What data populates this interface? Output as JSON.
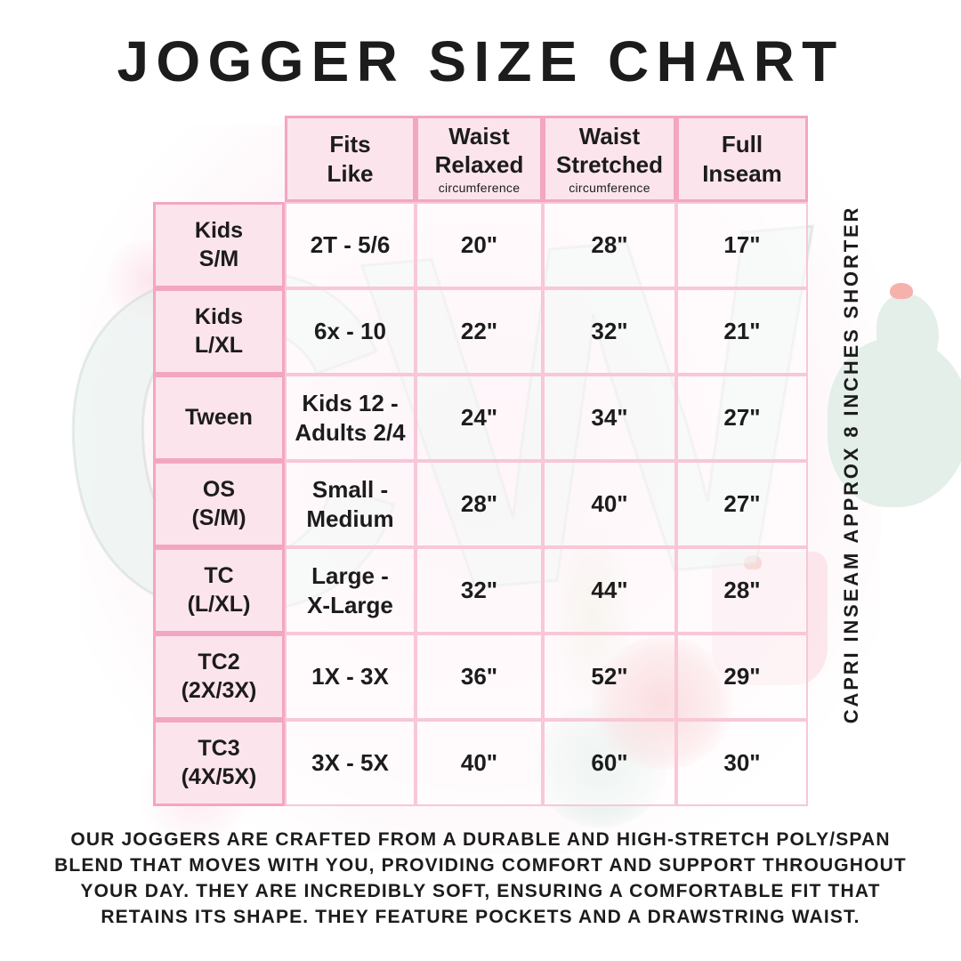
{
  "title": "JOGGER SIZE CHART",
  "watermark_text": "CW",
  "side_note": "CAPRI INSEAM APPROX 8 INCHES SHORTER",
  "footer_text": "OUR JOGGERS ARE CRAFTED FROM A DURABLE AND HIGH-STRETCH POLY/SPAN BLEND THAT MOVES WITH YOU, PROVIDING COMFORT AND SUPPORT THROUGHOUT YOUR DAY. THEY ARE INCREDIBLY SOFT, ENSURING A COMFORTABLE FIT THAT RETAINS ITS SHAPE. THEY FEATURE POCKETS AND A DRAWSTRING WAIST.",
  "colors": {
    "accent_border_strong": "#f3a6c1",
    "accent_border_light": "#f9c7d7",
    "cell_pink": "#fce4ed",
    "text": "#1c1c1c"
  },
  "table": {
    "columns": [
      {
        "label": "Fits\nLike",
        "sub": ""
      },
      {
        "label": "Waist\nRelaxed",
        "sub": "circumference"
      },
      {
        "label": "Waist\nStretched",
        "sub": "circumference"
      },
      {
        "label": "Full\nInseam",
        "sub": ""
      }
    ],
    "rows": [
      {
        "size": "Kids\nS/M",
        "fits": "2T - 5/6",
        "relaxed": "20\"",
        "stretched": "28\"",
        "inseam": "17\""
      },
      {
        "size": "Kids\nL/XL",
        "fits": "6x - 10",
        "relaxed": "22\"",
        "stretched": "32\"",
        "inseam": "21\""
      },
      {
        "size": "Tween",
        "fits": "Kids 12 -\nAdults 2/4",
        "relaxed": "24\"",
        "stretched": "34\"",
        "inseam": "27\""
      },
      {
        "size": "OS\n(S/M)",
        "fits": "Small -\nMedium",
        "relaxed": "28\"",
        "stretched": "40\"",
        "inseam": "27\""
      },
      {
        "size": "TC\n(L/XL)",
        "fits": "Large -\nX-Large",
        "relaxed": "32\"",
        "stretched": "44\"",
        "inseam": "28\""
      },
      {
        "size": "TC2\n(2X/3X)",
        "fits": "1X - 3X",
        "relaxed": "36\"",
        "stretched": "52\"",
        "inseam": "29\""
      },
      {
        "size": "TC3\n(4X/5X)",
        "fits": "3X - 5X",
        "relaxed": "40\"",
        "stretched": "60\"",
        "inseam": "30\""
      }
    ]
  }
}
